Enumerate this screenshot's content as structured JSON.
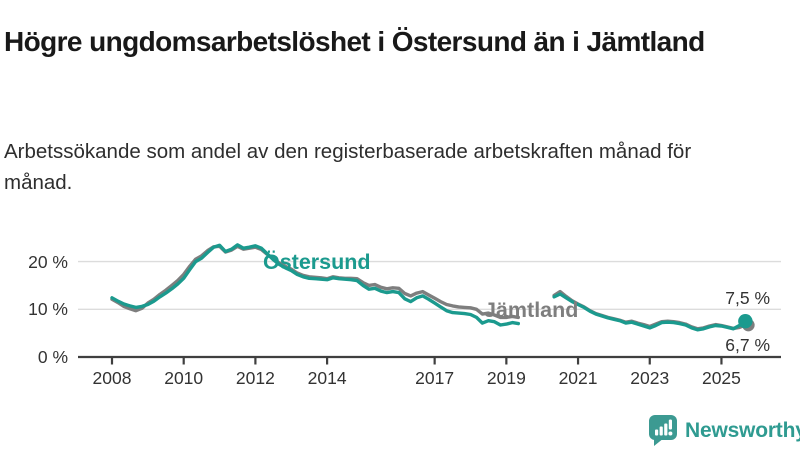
{
  "header": {
    "title": "Högre ungdomsarbetslöshet i Östersund än i Jämtland",
    "subtitle": "Arbetssökande som andel av den registerbaserade arbetskraften månad för månad."
  },
  "chart_data": {
    "type": "line",
    "title": "Högre ungdomsarbetslöshet i Östersund än i Jämtland",
    "xlabel": "",
    "ylabel": "",
    "grid": "horizontal-only",
    "ylim": [
      0,
      25
    ],
    "xlim": [
      2007.9,
      2026.3
    ],
    "y_ticks": [
      0,
      10,
      20
    ],
    "y_tick_labels": [
      "0 %",
      "10 %",
      "20 %"
    ],
    "x_ticks": [
      2008,
      2010,
      2012,
      2014,
      2017,
      2019,
      2021,
      2023,
      2025
    ],
    "x_start": 2008.0,
    "x_step_months": 2,
    "gap_period": "mid-2019 to early-2020 (no data)",
    "series": [
      {
        "name": "Östersund",
        "color": "#1b9a8e",
        "end_label": "7,5 %",
        "end_value": 7.5,
        "values": [
          12.4,
          11.7,
          11.1,
          10.7,
          10.4,
          10.6,
          11.0,
          11.7,
          12.6,
          13.4,
          14.3,
          15.3,
          16.5,
          18.3,
          20.0,
          20.7,
          21.9,
          23.0,
          23.4,
          22.1,
          22.6,
          23.5,
          22.8,
          23.0,
          23.3,
          22.8,
          21.6,
          20.4,
          19.4,
          18.7,
          18.1,
          17.3,
          16.8,
          16.5,
          16.4,
          16.3,
          16.2,
          16.6,
          16.4,
          16.3,
          16.2,
          16.0,
          15.0,
          14.2,
          14.4,
          13.8,
          13.5,
          13.7,
          13.5,
          12.2,
          11.6,
          12.4,
          12.8,
          12.1,
          11.3,
          10.5,
          9.7,
          9.3,
          9.2,
          9.1,
          8.9,
          8.3,
          7.1,
          7.6,
          7.4,
          6.7,
          6.9,
          7.2,
          7.0,
          null,
          null,
          null,
          null,
          null,
          12.6,
          13.2,
          12.4,
          11.6,
          11.0,
          10.4,
          9.6,
          9.0,
          8.6,
          8.2,
          7.9,
          7.6,
          7.1,
          7.3,
          6.9,
          6.5,
          6.1,
          6.6,
          7.2,
          7.3,
          7.2,
          7.0,
          6.7,
          6.1,
          5.7,
          5.9,
          6.3,
          6.6,
          6.5,
          6.2,
          5.9,
          6.6,
          7.5
        ]
      },
      {
        "name": "Jämtland",
        "color": "#7e7e7e",
        "end_label": "6,7 %",
        "end_value": 6.7,
        "values": [
          12.1,
          11.4,
          10.6,
          10.1,
          9.7,
          10.2,
          11.3,
          12.1,
          13.1,
          14.0,
          15.0,
          16.0,
          17.3,
          19.0,
          20.5,
          21.2,
          22.3,
          23.1,
          23.2,
          22.0,
          22.4,
          23.2,
          22.6,
          22.8,
          23.0,
          22.5,
          21.5,
          20.6,
          19.7,
          19.0,
          18.4,
          17.6,
          17.1,
          16.8,
          16.7,
          16.6,
          16.4,
          16.8,
          16.6,
          16.5,
          16.5,
          16.4,
          15.6,
          15.0,
          15.2,
          14.6,
          14.3,
          14.5,
          14.4,
          13.3,
          12.8,
          13.4,
          13.7,
          13.0,
          12.3,
          11.6,
          11.0,
          10.7,
          10.5,
          10.4,
          10.3,
          10.0,
          9.0,
          9.2,
          8.8,
          8.3,
          8.3,
          8.5,
          8.3,
          null,
          null,
          null,
          null,
          null,
          12.9,
          13.7,
          12.7,
          11.8,
          11.1,
          10.5,
          9.7,
          9.1,
          8.7,
          8.3,
          8.0,
          7.7,
          7.3,
          7.5,
          7.1,
          6.8,
          6.4,
          6.9,
          7.4,
          7.5,
          7.4,
          7.2,
          6.9,
          6.3,
          5.9,
          6.1,
          6.5,
          6.8,
          6.6,
          6.3,
          6.0,
          6.2,
          6.7
        ]
      }
    ]
  },
  "footer": {
    "brand": "Newsworthy",
    "brand_color": "#2f9b91",
    "logo_icon": "bar-chart-speech-bubble-icon"
  },
  "colors": {
    "background": "#ffffff",
    "title_text": "#191919",
    "axis_text": "#333333",
    "axis_line": "#3f3f3f",
    "gridline": "#dcdcdc",
    "ostersund_teal": "#1b9a8e",
    "jamtland_gray": "#7e7e7e"
  }
}
